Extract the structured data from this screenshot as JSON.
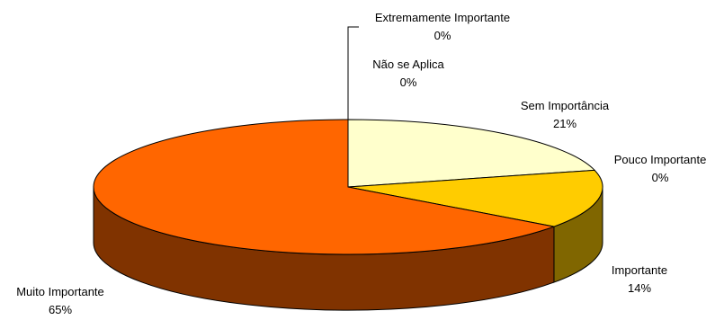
{
  "chart_data": {
    "type": "pie",
    "style": "3d",
    "title": "",
    "slices": [
      {
        "label": "Extremamente Importante",
        "value": 0,
        "pct": "0%",
        "color": "#FF99CC"
      },
      {
        "label": "Não se Aplica",
        "value": 0,
        "pct": "0%",
        "color": "#CC99FF"
      },
      {
        "label": "Sem Importância",
        "value": 21,
        "pct": "21%",
        "color": "#FFFFCC"
      },
      {
        "label": "Pouco Importante",
        "value": 0,
        "pct": "0%",
        "color": "#FFCC99"
      },
      {
        "label": "Importante",
        "value": 14,
        "pct": "14%",
        "color": "#FFCC00"
      },
      {
        "label": "Muito Importante",
        "value": 65,
        "pct": "65%",
        "color": "#FF6600"
      }
    ],
    "legend": "none"
  }
}
